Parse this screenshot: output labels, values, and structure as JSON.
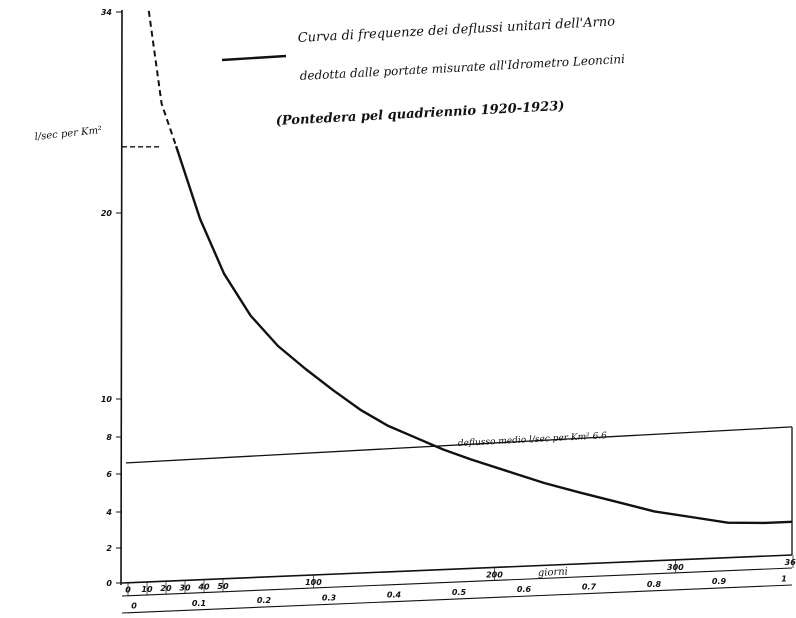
{
  "chart_data": {
    "type": "line",
    "title": [
      "Curva di frequenze dei deflussi unitari dell'Arno",
      "dedotta dalle portate misurate all'Idrometro Leoncini",
      "(Pontedera pel quadriennio 1920-1923)"
    ],
    "ylabel": "l/sec per Km²",
    "xlabel": "giorni",
    "x_days_range": [
      0,
      365
    ],
    "ylim": [
      0,
      34
    ],
    "y_ticks": [
      0,
      2,
      4,
      6,
      8,
      10,
      20,
      34
    ],
    "y_tick_labels": [
      "0",
      "2",
      "4",
      "6",
      "8",
      "10",
      "20",
      "34"
    ],
    "x_ticks_top": [
      0,
      10,
      20,
      30,
      40,
      50,
      100,
      200,
      300,
      365
    ],
    "x_ticks_top_labels": [
      "0",
      "10",
      "20",
      "30",
      "40",
      "50",
      "100",
      "200",
      "300",
      "365"
    ],
    "x_ticks_fraction_labels": [
      "0",
      "0.1",
      "0.2",
      "0.3",
      "0.4",
      "0.5",
      "0.6",
      "0.7",
      "0.8",
      "0.9",
      "1"
    ],
    "series": [
      {
        "name": "Curva di frequenze dei deflussi unitari dell'Arno",
        "x": [
          8,
          16,
          25,
          40,
          55,
          70,
          85,
          100,
          115,
          130,
          145,
          160,
          175,
          190,
          210,
          230,
          250,
          270,
          290,
          310,
          330,
          350,
          365
        ],
        "y": [
          34,
          27.5,
          24.5,
          19.5,
          16.5,
          14.2,
          12.5,
          11.2,
          10.0,
          8.9,
          8.0,
          7.3,
          6.6,
          6.0,
          5.3,
          4.6,
          4.0,
          3.4,
          2.8,
          2.4,
          2.0,
          1.9,
          1.9
        ]
      }
    ],
    "annotations": [
      {
        "text": "deflusso medio l/sec per Km² 6.6",
        "value": 6.6
      }
    ],
    "grid": false
  }
}
